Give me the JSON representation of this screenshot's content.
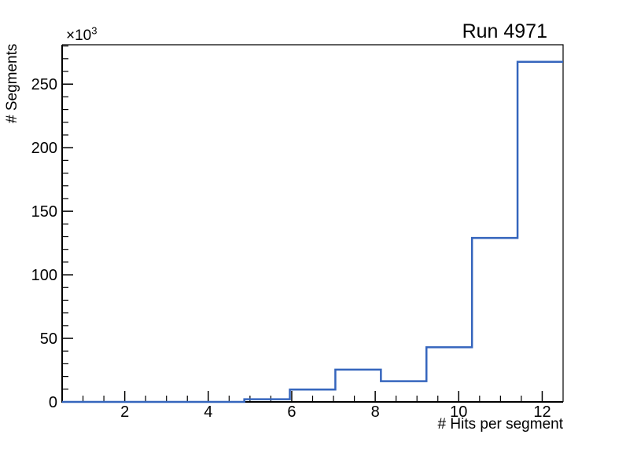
{
  "page": {
    "background": "#ffffff",
    "text_color": "#000000"
  },
  "chart_data": {
    "type": "bar",
    "subtype": "step-histogram",
    "title": "Run 4971",
    "xlabel": "# Hits per segment",
    "ylabel": "# Segments",
    "y_power_base": "×10",
    "y_power_exp": "3",
    "x_range": [
      0.5,
      12.5
    ],
    "y_range": [
      0,
      281000
    ],
    "bin_edges": [
      0.5,
      1.591,
      2.682,
      3.773,
      4.864,
      5.955,
      7.045,
      8.136,
      9.227,
      10.318,
      11.409,
      12.5
    ],
    "bin_values": [
      0,
      0,
      0,
      0,
      2100,
      9700,
      25400,
      16300,
      43000,
      129000,
      267600
    ],
    "x_major_ticks": [
      2,
      4,
      6,
      8,
      10,
      12
    ],
    "x_tick_labels": [
      "2",
      "4",
      "6",
      "8",
      "10",
      "12"
    ],
    "x_minor_step": 0.5,
    "y_major_ticks": [
      0,
      50000,
      100000,
      150000,
      200000,
      250000
    ],
    "y_tick_labels": [
      "0",
      "50",
      "100",
      "150",
      "200",
      "250"
    ],
    "y_minor_step": 10000,
    "line_color": "#3565bd",
    "axis_color": "#000000",
    "grid": false,
    "legend": null
  }
}
